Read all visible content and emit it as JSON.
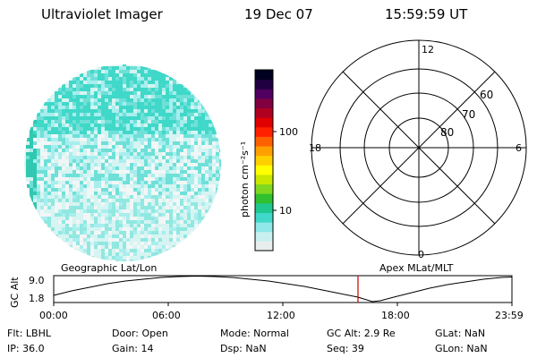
{
  "header": {
    "title": "Ultraviolet Imager",
    "date": "19 Dec 07",
    "time": "15:59:59 UT"
  },
  "colorbar": {
    "unit_label": "photon cm⁻²s⁻¹",
    "tick_labels": [
      "100",
      "10"
    ],
    "colors": [
      "#e8eeee",
      "#c8f0f0",
      "#90e8e8",
      "#40d8c8",
      "#20c890",
      "#30c030",
      "#80d820",
      "#c8e800",
      "#ffff00",
      "#ffd000",
      "#ffa000",
      "#ff6000",
      "#ff2000",
      "#e00000",
      "#b00020",
      "#800040",
      "#500060",
      "#200040",
      "#000020"
    ]
  },
  "polar_plot": {
    "lat_labels": [
      "60",
      "70",
      "80"
    ],
    "mlt_labels": {
      "top": "12",
      "left": "18",
      "right": "6",
      "bottom": "0"
    }
  },
  "timeline": {
    "left_label": "Geographic Lat/Lon",
    "right_label": "Apex MLat/MLT",
    "axis_title": "GC Alt",
    "ytick_top": "9.0",
    "ytick_bottom": "1.8",
    "x_ticks": [
      "00:00",
      "06:00",
      "12:00",
      "18:00",
      "23:59"
    ],
    "current_time_marker": "15:59:59",
    "marker_color": "#cc0000"
  },
  "status": {
    "flt": "Flt: LBHL",
    "ip": "IP: 36.0",
    "door": "Door: Open",
    "gain": "Gain: 14",
    "mode": "Mode: Normal",
    "dsp": "Dsp:      NaN",
    "gcalt": "GC Alt: 2.9 Re",
    "seq": "Seq: 39",
    "glat": "GLat:      NaN",
    "glon": "GLon:      NaN"
  }
}
